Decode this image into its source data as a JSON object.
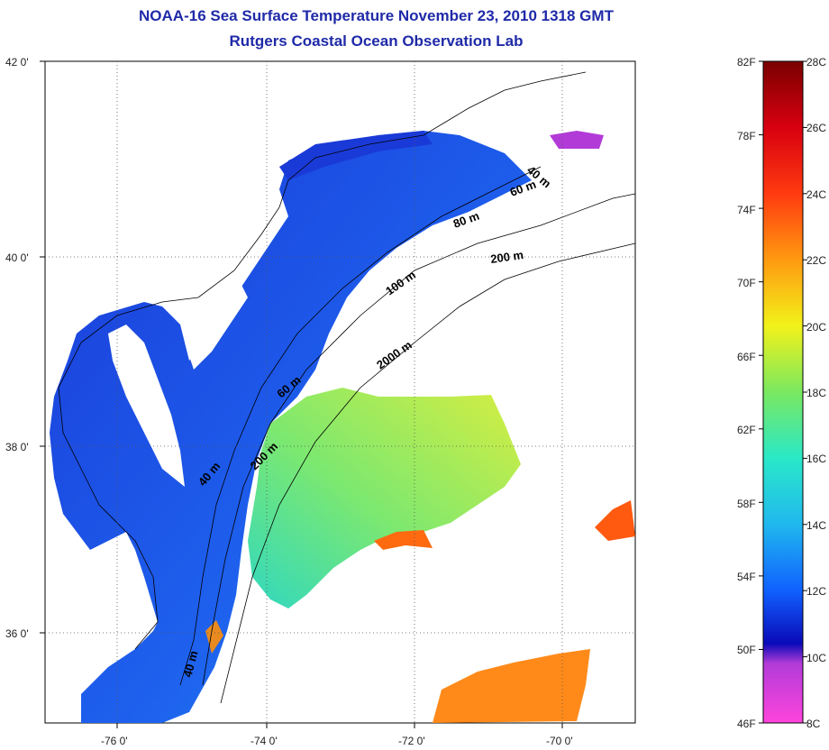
{
  "title": "NOAA-16 Sea Surface Temperature November 23, 2010 1318 GMT",
  "subtitle": "Rutgers Coastal Ocean Observation Lab",
  "latitude_labels": [
    "42 0'",
    "40 0'",
    "38 0'",
    "36 0'"
  ],
  "longitude_labels": [
    "-76 0'",
    "-74 0'",
    "-72 0'",
    "-70 0'"
  ],
  "contour_labels": [
    "40 m",
    "60 m",
    "80 m",
    "200 m",
    "100 m",
    "2000 m",
    "60 m",
    "200 m",
    "40 m",
    "40 m"
  ],
  "colorbar": {
    "fahrenheit_labels": [
      "82F",
      "78F",
      "74F",
      "70F",
      "66F",
      "62F",
      "58F",
      "54F",
      "50F",
      "46F"
    ],
    "celsius_labels": [
      "28C",
      "26C",
      "24C",
      "22C",
      "20C",
      "18C",
      "16C",
      "14C",
      "12C",
      "10C",
      "8C"
    ],
    "min_c": 8,
    "max_c": 28
  },
  "colors": {
    "title": "#1f2aa8",
    "land": "#ffffff",
    "cold_shelf_water": "#1a40e0",
    "warm_offshore_water": "#8fe65a",
    "gulf_stream": "#ff8a1a"
  }
}
